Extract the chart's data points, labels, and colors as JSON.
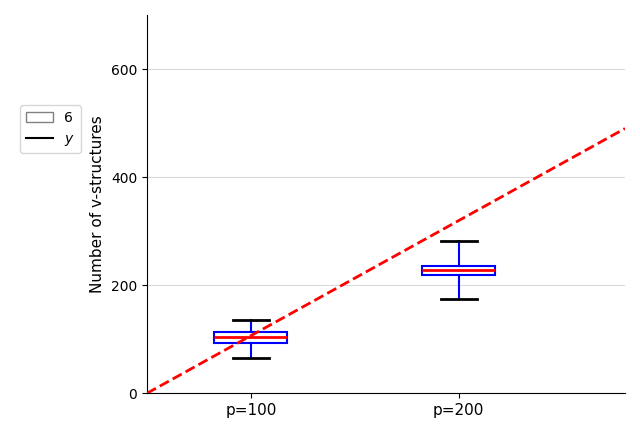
{
  "categories": [
    "p=100",
    "p=200"
  ],
  "positions": [
    1,
    2
  ],
  "box1": {
    "median": 105,
    "q1": 93,
    "q3": 113,
    "whisker_low": 65,
    "whisker_high": 135
  },
  "box2": {
    "median": 228,
    "q1": 218,
    "q3": 235,
    "whisker_low": 175,
    "whisker_high": 282
  },
  "dashed_line": {
    "x": [
      0.5,
      2.8
    ],
    "y": [
      0,
      490
    ],
    "color": "#ff0000",
    "linewidth": 2.0,
    "linestyle": "--"
  },
  "ylabel": "Number of v-structures",
  "ylim": [
    0,
    700
  ],
  "yticks": [
    0,
    200,
    400,
    600
  ],
  "box_color": "#0000ff",
  "median_color": "#ff0000",
  "cap_color": "#000000",
  "figsize": [
    6.4,
    4.33
  ],
  "dpi": 100
}
